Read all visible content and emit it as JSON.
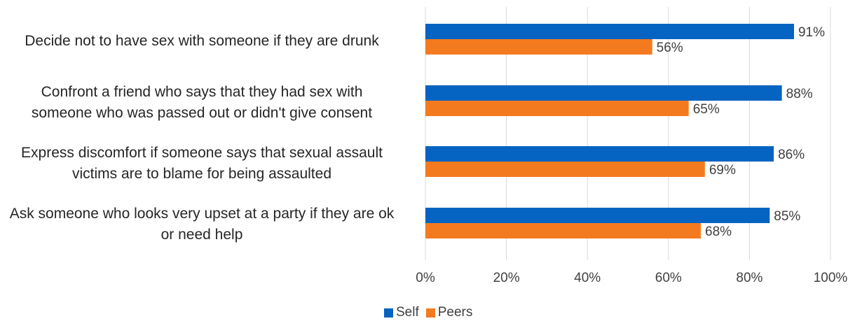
{
  "chart_data": {
    "type": "bar",
    "orientation": "horizontal",
    "categories": [
      "Decide not to have sex with someone if they are drunk",
      "Confront a friend who says that they had sex with someone who was passed out or didn't give consent",
      "Express discomfort if someone says that sexual assault victims are to blame for being assaulted",
      "Ask someone who looks very upset at a party if they are ok or need help"
    ],
    "category_lines": [
      [
        "Decide not to have sex with someone if they are drunk"
      ],
      [
        "Confront a friend who says that they had sex with",
        "someone who was passed out or didn't give consent"
      ],
      [
        "Express discomfort if someone says that sexual assault",
        "victims are to blame for being assaulted"
      ],
      [
        "Ask someone who looks very upset at a party if they are ok",
        "or need help"
      ]
    ],
    "series": [
      {
        "name": "Self",
        "values": [
          91,
          88,
          86,
          85
        ],
        "labels": [
          "91%",
          "88%",
          "86%",
          "85%"
        ],
        "color": "#0563C1"
      },
      {
        "name": "Peers",
        "values": [
          56,
          65,
          69,
          68
        ],
        "labels": [
          "56%",
          "65%",
          "69%",
          "68%"
        ],
        "color": "#F47A20"
      }
    ],
    "xlim": [
      0,
      100
    ],
    "x_ticks": [
      "0%",
      "20%",
      "40%",
      "60%",
      "80%",
      "100%"
    ],
    "grid": true,
    "legend_position": "bottom",
    "gridline_color": "#D9D9D9"
  }
}
